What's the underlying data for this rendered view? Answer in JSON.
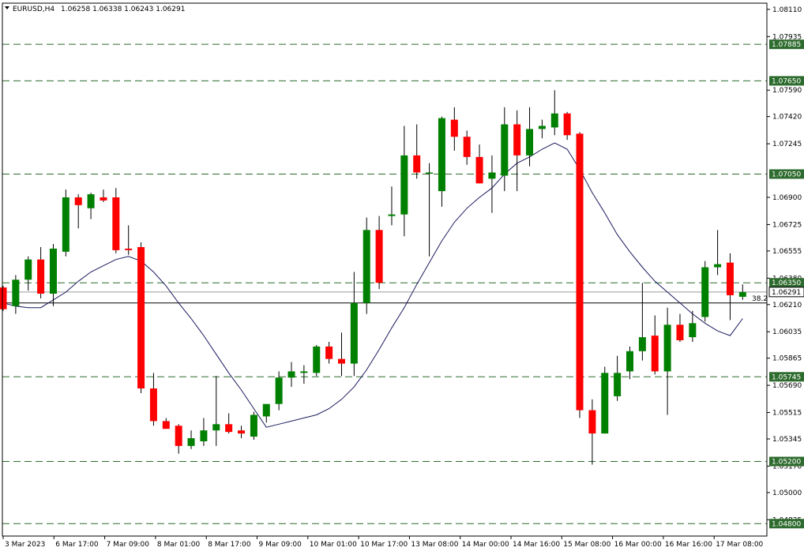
{
  "header": {
    "symbol": "EURUSD,H4",
    "quote": "1.06258 1.06338 1.06243 1.06291",
    "menu_icon": "triangle-down-icon"
  },
  "colors": {
    "bull": "#008000",
    "bear": "#ff0000",
    "wick": "#000000",
    "ma": "#1a1a5e",
    "level_line": "#2e6b2e",
    "level_tag_bg": "#2e6b2e",
    "level_tag_text": "#ffffff",
    "price_tag_bg": "#ffffff",
    "axis": "#000000"
  },
  "chart_data": {
    "type": "candlestick",
    "symbol": "EURUSD",
    "timeframe": "H4",
    "ylim": [
      1.0472,
      1.0815
    ],
    "price_ticks": [
      "1.08110",
      "1.07935",
      "1.07590",
      "1.07420",
      "1.07245",
      "1.06900",
      "1.06725",
      "1.06555",
      "1.06380",
      "1.06210",
      "1.06035",
      "1.05865",
      "1.05690",
      "1.05515",
      "1.05345",
      "1.05170",
      "1.05000",
      "1.04825"
    ],
    "time_labels": [
      "3 Mar 2023",
      "6 Mar 17:00",
      "7 Mar 09:00",
      "8 Mar 01:00",
      "8 Mar 17:00",
      "9 Mar 09:00",
      "10 Mar 01:00",
      "10 Mar 17:00",
      "13 Mar 08:00",
      "14 Mar 00:00",
      "14 Mar 16:00",
      "15 Mar 08:00",
      "16 Mar 00:00",
      "16 Mar 16:00",
      "17 Mar 08:00"
    ],
    "horizontal_levels": [
      "1.07885",
      "1.07650",
      "1.07050",
      "1.06350",
      "1.05745",
      "1.05200",
      "1.04800"
    ],
    "current_price": "1.06291",
    "fib_level": {
      "label": "38.2",
      "price": 1.0622
    },
    "candles": [
      [
        1.0632,
        1.0633,
        1.0617,
        1.0618
      ],
      [
        1.062,
        1.064,
        1.0615,
        1.0637
      ],
      [
        1.0637,
        1.0652,
        1.063,
        1.065
      ],
      [
        1.065,
        1.0658,
        1.0625,
        1.0628
      ],
      [
        1.0628,
        1.066,
        1.062,
        1.0657
      ],
      [
        1.0655,
        1.0695,
        1.0652,
        1.069
      ],
      [
        1.069,
        1.0692,
        1.067,
        1.0685
      ],
      [
        1.0683,
        1.0693,
        1.0676,
        1.0692
      ],
      [
        1.069,
        1.0695,
        1.0687,
        1.0688
      ],
      [
        1.069,
        1.0696,
        1.0654,
        1.0656
      ],
      [
        1.0657,
        1.0672,
        1.0653,
        1.0656
      ],
      [
        1.0658,
        1.0661,
        1.0564,
        1.0567
      ],
      [
        1.0567,
        1.0577,
        1.0543,
        1.0546
      ],
      [
        1.0546,
        1.0548,
        1.0541,
        1.0541
      ],
      [
        1.0543,
        1.0544,
        1.0525,
        1.053
      ],
      [
        1.053,
        1.054,
        1.0528,
        1.0535
      ],
      [
        1.0533,
        1.0548,
        1.053,
        1.054
      ],
      [
        1.054,
        1.0575,
        1.053,
        1.0544
      ],
      [
        1.0544,
        1.0551,
        1.0538,
        1.0539
      ],
      [
        1.054,
        1.0543,
        1.0535,
        1.0538
      ],
      [
        1.0536,
        1.0552,
        1.0534,
        1.055
      ],
      [
        1.0549,
        1.0554,
        1.0545,
        1.0557
      ],
      [
        1.0557,
        1.0578,
        1.0553,
        1.0574
      ],
      [
        1.0574,
        1.0584,
        1.0568,
        1.0578
      ],
      [
        1.0577,
        1.0582,
        1.057,
        1.0578
      ],
      [
        1.0577,
        1.0595,
        1.0575,
        1.0594
      ],
      [
        1.0594,
        1.0597,
        1.0583,
        1.0586
      ],
      [
        1.0586,
        1.0603,
        1.0575,
        1.0583
      ],
      [
        1.0583,
        1.0642,
        1.0575,
        1.0622
      ],
      [
        1.0622,
        1.0677,
        1.0615,
        1.0669
      ],
      [
        1.0669,
        1.0678,
        1.0631,
        1.0635
      ],
      [
        1.0678,
        1.0697,
        1.0672,
        1.0679
      ],
      [
        1.0679,
        1.0736,
        1.0665,
        1.0717
      ],
      [
        1.0717,
        1.0737,
        1.0702,
        1.0706
      ],
      [
        1.0706,
        1.0712,
        1.0652,
        1.0706
      ],
      [
        1.0694,
        1.0742,
        1.0684,
        1.0741
      ],
      [
        1.074,
        1.0748,
        1.072,
        1.0729
      ],
      [
        1.0729,
        1.0733,
        1.0711,
        1.0716
      ],
      [
        1.0716,
        1.0724,
        1.0699,
        1.0699
      ],
      [
        1.0702,
        1.0717,
        1.068,
        1.0706
      ],
      [
        1.0704,
        1.0748,
        1.0694,
        1.0737
      ],
      [
        1.0737,
        1.0746,
        1.0694,
        1.0717
      ],
      [
        1.0717,
        1.0748,
        1.071,
        1.0734
      ],
      [
        1.0734,
        1.074,
        1.0728,
        1.0736
      ],
      [
        1.0735,
        1.0759,
        1.073,
        1.0744
      ],
      [
        1.0744,
        1.0745,
        1.0727,
        1.073
      ],
      [
        1.0731,
        1.0732,
        1.0548,
        1.0553
      ],
      [
        1.0553,
        1.056,
        1.0518,
        1.0538
      ],
      [
        1.0538,
        1.0581,
        1.0538,
        1.0577
      ],
      [
        1.0562,
        1.0588,
        1.0559,
        1.0577
      ],
      [
        1.0578,
        1.0594,
        1.0573,
        1.0591
      ],
      [
        1.0591,
        1.0635,
        1.0585,
        1.06
      ],
      [
        1.0601,
        1.0614,
        1.0576,
        1.0578
      ],
      [
        1.0578,
        1.0619,
        1.055,
        1.0608
      ],
      [
        1.0608,
        1.0615,
        1.0597,
        1.0598
      ],
      [
        1.06,
        1.0617,
        1.0597,
        1.0609
      ],
      [
        1.0613,
        1.0649,
        1.061,
        1.0645
      ],
      [
        1.0645,
        1.0669,
        1.064,
        1.0647
      ],
      [
        1.0648,
        1.0654,
        1.0611,
        1.0627
      ],
      [
        1.0626,
        1.0634,
        1.0624,
        1.0629
      ]
    ],
    "ma_line": [
      1.0622,
      1.062,
      1.0619,
      1.0619,
      1.0624,
      1.0629,
      1.0636,
      1.0642,
      1.0646,
      1.065,
      1.0652,
      1.0649,
      1.0642,
      1.0633,
      1.0622,
      1.0612,
      1.0601,
      1.0589,
      1.0577,
      1.0566,
      1.0554,
      1.0542,
      1.0544,
      1.0546,
      1.0548,
      1.055,
      1.0554,
      1.056,
      1.0568,
      1.0579,
      1.0592,
      1.0606,
      1.0619,
      1.0634,
      1.0648,
      1.0662,
      1.0674,
      1.0683,
      1.069,
      1.0696,
      1.0705,
      1.0712,
      1.0716,
      1.0721,
      1.0725,
      1.0721,
      1.0708,
      1.0693,
      1.068,
      1.0666,
      1.0655,
      1.0645,
      1.0636,
      1.0629,
      1.0622,
      1.0615,
      1.0609,
      1.0604,
      1.0601,
      1.0612
    ]
  }
}
